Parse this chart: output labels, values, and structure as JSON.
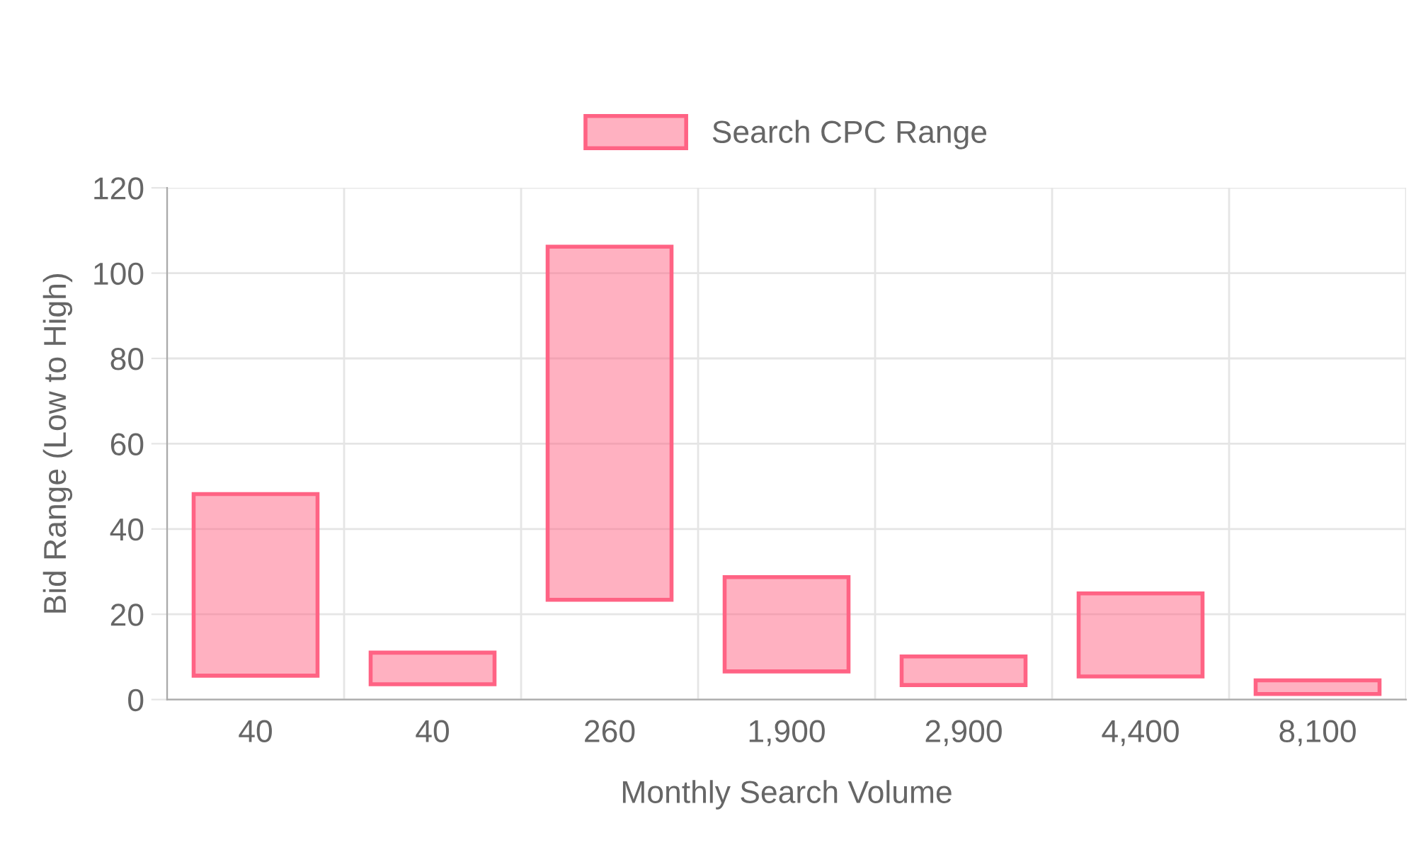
{
  "chart_data": {
    "type": "bar",
    "categories": [
      "40",
      "40",
      "260",
      "1,900",
      "2,900",
      "4,400",
      "8,100"
    ],
    "series": [
      {
        "name": "Search CPC Range",
        "color": "#ff6384",
        "values": [
          42.6,
          7.4,
          82.8,
          22.1,
          6.7,
          19.5,
          3.2
        ],
        "base": [
          5.6,
          3.6,
          23.4,
          6.6,
          3.4,
          5.4,
          1.3
        ]
      }
    ],
    "xlabel": "Monthly Search Volume",
    "ylabel": "Bid Range (Low to High)",
    "ylim": [
      0,
      120
    ],
    "yticks": [
      0,
      20,
      40,
      60,
      80,
      100,
      120
    ],
    "grid": true,
    "legend": "top"
  }
}
